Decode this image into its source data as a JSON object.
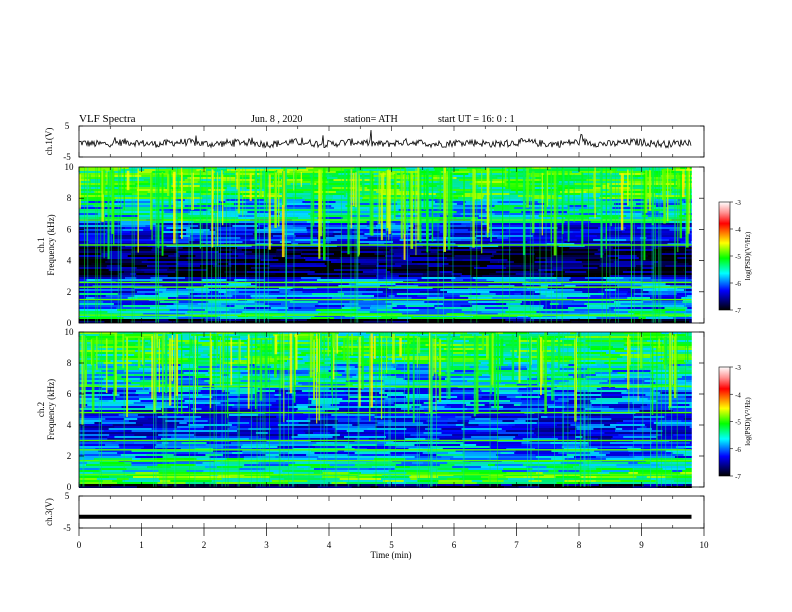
{
  "header": {
    "title": "VLF Spectra",
    "date": "Jun. 8 , 2020",
    "station": "station= ATH",
    "start": "start UT = 16: 0 : 1"
  },
  "colorbar": {
    "label": "log(PSD)(V²/Hz)",
    "ticks": [
      "-3",
      "-4",
      "-5",
      "-6",
      "-7"
    ],
    "colors": [
      "#ffffff",
      "#ff0000",
      "#ffff00",
      "#00ff00",
      "#00ffff",
      "#0000ff",
      "#000000"
    ]
  },
  "chart_data": [
    {
      "type": "line",
      "panel": "ch1-waveform",
      "ylabel": "ch.1(V)",
      "ylim": [
        -5,
        5
      ],
      "yticks": [
        "5",
        "-5"
      ],
      "description_series": "noisy waveform near -1 V",
      "series": [
        {
          "values_summary_mean": -0.5,
          "x_range_min": [
            0,
            9.8
          ]
        }
      ]
    },
    {
      "type": "heatmap",
      "panel": "ch1-spectrogram",
      "ylabel": "ch.1 Frequency (kHz)",
      "ylim": [
        0,
        10
      ],
      "yticks": [
        "0",
        "2",
        "4",
        "6",
        "8",
        "10"
      ],
      "xlim": [
        0,
        10
      ],
      "data_extent_min": 9.8,
      "bands_khz": [
        {
          "range": [
            0,
            0.3
          ],
          "level": -7.0
        },
        {
          "range": [
            0.3,
            1.0
          ],
          "level": -5.6
        },
        {
          "range": [
            1.0,
            2.0
          ],
          "level": -5.9
        },
        {
          "range": [
            2.0,
            3.0
          ],
          "level": -6.1
        },
        {
          "range": [
            3.0,
            5.0
          ],
          "level": -6.8
        },
        {
          "range": [
            5.0,
            6.5
          ],
          "level": -6.2
        },
        {
          "range": [
            6.5,
            8.0
          ],
          "level": -5.7
        },
        {
          "range": [
            8.0,
            10.0
          ],
          "level": -5.2
        }
      ],
      "lines_khz": [
        0.5,
        1.5,
        2.3,
        2.6,
        5.0,
        6.6
      ]
    },
    {
      "type": "heatmap",
      "panel": "ch2-spectrogram",
      "ylabel": "ch.2 Frequency (kHz)",
      "ylim": [
        0,
        10
      ],
      "yticks": [
        "0",
        "2",
        "4",
        "6",
        "8",
        "10"
      ],
      "xlim": [
        0,
        10
      ],
      "data_extent_min": 9.8,
      "bands_khz": [
        {
          "range": [
            0,
            0.3
          ],
          "level": -6.8
        },
        {
          "range": [
            0.3,
            1.0
          ],
          "level": -5.2
        },
        {
          "range": [
            1.0,
            2.0
          ],
          "level": -5.6
        },
        {
          "range": [
            2.0,
            3.0
          ],
          "level": -5.9
        },
        {
          "range": [
            3.0,
            5.0
          ],
          "level": -6.2
        },
        {
          "range": [
            5.0,
            6.5
          ],
          "level": -6.0
        },
        {
          "range": [
            6.5,
            8.0
          ],
          "level": -5.7
        },
        {
          "range": [
            8.0,
            10.0
          ],
          "level": -5.3
        }
      ],
      "lines_khz": [
        0.8,
        1.7,
        2.4,
        3.0,
        4.8,
        6.5
      ]
    },
    {
      "type": "line",
      "panel": "ch3-waveform",
      "ylabel": "ch.3(V)",
      "ylim": [
        -5,
        5
      ],
      "yticks": [
        "5",
        "-5"
      ],
      "series": [
        {
          "values_constant": -1.5,
          "x_range_min": [
            0,
            9.8
          ]
        }
      ],
      "xlabel": "Time (min)",
      "xlim": [
        0,
        10
      ],
      "xticks": [
        "0",
        "1",
        "2",
        "3",
        "4",
        "5",
        "6",
        "7",
        "8",
        "9",
        "10"
      ]
    }
  ]
}
